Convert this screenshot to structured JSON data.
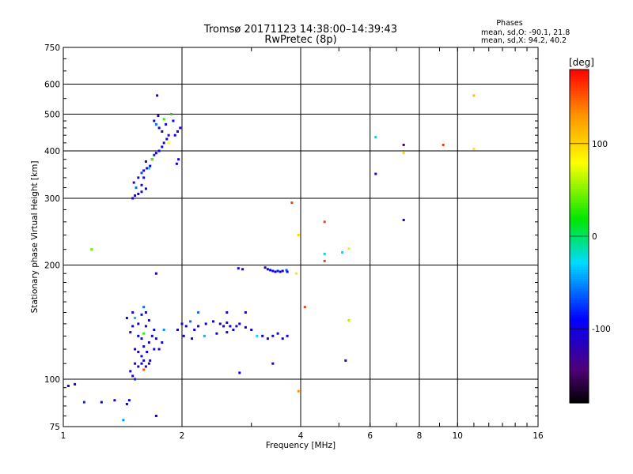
{
  "chart_data": {
    "type": "scatter",
    "title": "Tromsø 20171123 14:38:00–14:39:43",
    "subtitle": "RwPretec (8p)",
    "xlabel": "Frequency [MHz]",
    "ylabel": "Stationary phase Virtual Height [km]",
    "x_scale": "log",
    "y_scale": "log",
    "xlim": [
      1,
      16
    ],
    "ylim": [
      75,
      750
    ],
    "x_ticks": [
      1,
      2,
      4,
      6,
      8,
      10,
      16
    ],
    "y_ticks": [
      75,
      100,
      200,
      300,
      400,
      500,
      600,
      750
    ],
    "grid": true,
    "phases_header": "Phases",
    "stats": [
      "mean, sd,O: -90.1, 21.8",
      "mean, sd,X:  94.2, 40.2"
    ],
    "colorbar": {
      "label": "[deg]",
      "range": [
        -180,
        180
      ],
      "ticks": [
        100,
        0,
        -100
      ]
    },
    "points": [
      [
        1.03,
        96,
        -115
      ],
      [
        1.07,
        97,
        -100
      ],
      [
        1.13,
        87,
        -80
      ],
      [
        1.25,
        87,
        -95
      ],
      [
        1.35,
        88,
        -100
      ],
      [
        1.45,
        86,
        -110
      ],
      [
        1.47,
        88,
        -90
      ],
      [
        1.42,
        78,
        -50
      ],
      [
        1.72,
        80,
        -100
      ],
      [
        1.18,
        220,
        40
      ],
      [
        1.5,
        300,
        -105
      ],
      [
        1.52,
        305,
        -90
      ],
      [
        1.55,
        308,
        -110
      ],
      [
        1.58,
        312,
        -100
      ],
      [
        1.62,
        318,
        -95
      ],
      [
        1.53,
        320,
        -60
      ],
      [
        1.51,
        330,
        -120
      ],
      [
        1.55,
        340,
        -110
      ],
      [
        1.58,
        350,
        -70
      ],
      [
        1.6,
        355,
        -100
      ],
      [
        1.63,
        360,
        -110
      ],
      [
        1.66,
        365,
        -95
      ],
      [
        1.62,
        375,
        -120
      ],
      [
        1.68,
        380,
        -100
      ],
      [
        1.7,
        390,
        -80
      ],
      [
        1.72,
        395,
        -110
      ],
      [
        1.75,
        400,
        -100
      ],
      [
        1.78,
        410,
        -90
      ],
      [
        1.8,
        420,
        -110
      ],
      [
        1.83,
        430,
        -100
      ],
      [
        1.85,
        440,
        -120
      ],
      [
        1.78,
        450,
        -100
      ],
      [
        1.75,
        460,
        -95
      ],
      [
        1.72,
        470,
        -60
      ],
      [
        1.7,
        480,
        -100
      ],
      [
        1.8,
        485,
        30
      ],
      [
        1.82,
        470,
        -100
      ],
      [
        1.74,
        495,
        -110
      ],
      [
        1.88,
        500,
        20
      ],
      [
        1.9,
        480,
        -100
      ],
      [
        1.92,
        440,
        -90
      ],
      [
        1.95,
        450,
        -100
      ],
      [
        1.98,
        460,
        -110
      ],
      [
        1.96,
        380,
        -100
      ],
      [
        1.94,
        370,
        -95
      ],
      [
        1.73,
        560,
        -100
      ],
      [
        1.65,
        360,
        -20
      ],
      [
        1.6,
        340,
        -100
      ],
      [
        1.58,
        325,
        -100
      ],
      [
        1.85,
        420,
        80
      ],
      [
        1.68,
        380,
        40
      ],
      [
        1.72,
        190,
        -110
      ],
      [
        2.78,
        196,
        -100
      ],
      [
        2.85,
        195,
        -95
      ],
      [
        3.25,
        197,
        -100
      ],
      [
        3.3,
        195,
        -110
      ],
      [
        3.35,
        194,
        -90
      ],
      [
        3.4,
        193,
        -100
      ],
      [
        3.45,
        192,
        -100
      ],
      [
        3.5,
        193,
        -80
      ],
      [
        3.55,
        192,
        -100
      ],
      [
        3.6,
        193,
        -110
      ],
      [
        3.68,
        194,
        -60
      ],
      [
        3.7,
        192,
        -100
      ],
      [
        3.9,
        190,
        90
      ],
      [
        1.45,
        145,
        -100
      ],
      [
        1.5,
        150,
        -110
      ],
      [
        1.52,
        145,
        -40
      ],
      [
        1.55,
        140,
        -100
      ],
      [
        1.58,
        148,
        -95
      ],
      [
        1.6,
        155,
        -60
      ],
      [
        1.62,
        150,
        -100
      ],
      [
        1.65,
        143,
        -110
      ],
      [
        1.5,
        138,
        -100
      ],
      [
        1.48,
        133,
        -110
      ],
      [
        1.55,
        130,
        -90
      ],
      [
        1.58,
        128,
        -100
      ],
      [
        1.6,
        132,
        30
      ],
      [
        1.62,
        138,
        -100
      ],
      [
        1.65,
        125,
        -110
      ],
      [
        1.68,
        130,
        -100
      ],
      [
        1.7,
        135,
        -90
      ],
      [
        1.72,
        128,
        -100
      ],
      [
        1.75,
        120,
        -110
      ],
      [
        1.78,
        125,
        -100
      ],
      [
        1.8,
        135,
        -50
      ],
      [
        1.52,
        120,
        -100
      ],
      [
        1.55,
        118,
        -110
      ],
      [
        1.58,
        115,
        -100
      ],
      [
        1.6,
        122,
        -90
      ],
      [
        1.63,
        118,
        -100
      ],
      [
        1.66,
        112,
        -110
      ],
      [
        1.7,
        120,
        -100
      ],
      [
        1.52,
        110,
        -100
      ],
      [
        1.55,
        108,
        -110
      ],
      [
        1.58,
        110,
        -100
      ],
      [
        1.6,
        112,
        -90
      ],
      [
        1.62,
        108,
        -100
      ],
      [
        1.65,
        110,
        -110
      ],
      [
        1.48,
        105,
        -100
      ],
      [
        1.5,
        102,
        -110
      ],
      [
        1.52,
        100,
        -80
      ],
      [
        1.6,
        106,
        150
      ],
      [
        1.95,
        135,
        -100
      ],
      [
        2.0,
        140,
        -110
      ],
      [
        2.05,
        138,
        -100
      ],
      [
        2.1,
        142,
        -60
      ],
      [
        2.15,
        135,
        -100
      ],
      [
        2.2,
        138,
        -110
      ],
      [
        2.3,
        140,
        -90
      ],
      [
        2.4,
        142,
        -100
      ],
      [
        2.5,
        140,
        -110
      ],
      [
        2.55,
        138,
        -100
      ],
      [
        2.6,
        141,
        -100
      ],
      [
        2.65,
        138,
        -90
      ],
      [
        2.7,
        135,
        -100
      ],
      [
        2.75,
        138,
        -110
      ],
      [
        2.8,
        140,
        -100
      ],
      [
        2.9,
        137,
        -100
      ],
      [
        3.0,
        135,
        -100
      ],
      [
        2.02,
        130,
        -100
      ],
      [
        2.12,
        128,
        -90
      ],
      [
        2.28,
        130,
        -40
      ],
      [
        2.45,
        132,
        -100
      ],
      [
        2.6,
        133,
        -110
      ],
      [
        3.2,
        130,
        -100
      ],
      [
        3.3,
        128,
        -110
      ],
      [
        3.4,
        130,
        -100
      ],
      [
        3.5,
        132,
        -100
      ],
      [
        3.6,
        128,
        -90
      ],
      [
        3.7,
        130,
        -100
      ],
      [
        2.2,
        150,
        -60
      ],
      [
        2.6,
        150,
        -110
      ],
      [
        2.9,
        150,
        -100
      ],
      [
        3.1,
        130,
        -30
      ],
      [
        2.8,
        104,
        -100
      ],
      [
        3.4,
        110,
        -100
      ],
      [
        3.95,
        93,
        130
      ],
      [
        4.1,
        155,
        160
      ],
      [
        3.8,
        292,
        160
      ],
      [
        3.95,
        240,
        100
      ],
      [
        4.6,
        260,
        160
      ],
      [
        4.6,
        214,
        -20
      ],
      [
        4.6,
        205,
        160
      ],
      [
        5.1,
        216,
        -30
      ],
      [
        5.3,
        221,
        90
      ],
      [
        5.3,
        143,
        60
      ],
      [
        5.2,
        112,
        -110
      ],
      [
        6.2,
        435,
        -20
      ],
      [
        6.2,
        348,
        -110
      ],
      [
        7.3,
        415,
        -150
      ],
      [
        7.3,
        395,
        100
      ],
      [
        7.3,
        263,
        -110
      ],
      [
        9.2,
        415,
        160
      ],
      [
        11,
        560,
        110
      ],
      [
        11,
        405,
        90
      ]
    ]
  }
}
